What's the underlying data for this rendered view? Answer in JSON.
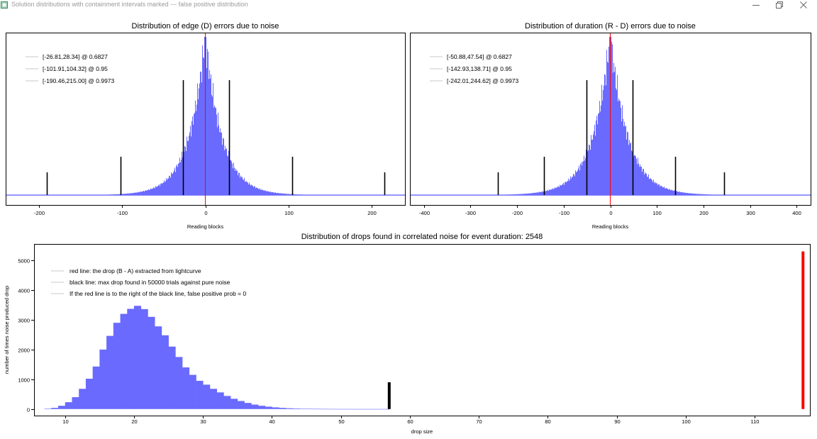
{
  "window": {
    "title": "Solution distributions with containment intervals marked --- false positive distribution",
    "icon": "app-icon",
    "controls": [
      "minimize-icon",
      "restore-icon",
      "close-icon"
    ]
  },
  "colors": {
    "histogram": "#6a6aff",
    "red_line": "#ff0000",
    "black_line": "#000000",
    "frame": "#000000",
    "background": "#ffffff"
  },
  "chart_data": [
    {
      "type": "bar",
      "title": "Distribution of edge (D) errors due to noise",
      "xlabel": "Reading blocks",
      "ylabel": "",
      "xlim": [
        -240,
        240
      ],
      "xticks": [
        -200,
        -100,
        0,
        100,
        200
      ],
      "grid": false,
      "legend_position": "top-left",
      "legend": [
        "[-26.81,28.34] @ 0.6827",
        "[-101.91,104.32] @ 0.95",
        "[-190.46,215.00] @ 0.9973"
      ],
      "histogram_center": 0,
      "histogram_shape": "laplace",
      "histogram_scale": 20,
      "red_line_x": 0,
      "intervals": [
        {
          "low": -26.81,
          "high": 28.34,
          "confidence": 0.6827
        },
        {
          "low": -101.91,
          "high": 104.32,
          "confidence": 0.95
        },
        {
          "low": -190.46,
          "high": 215.0,
          "confidence": 0.9973
        }
      ]
    },
    {
      "type": "bar",
      "title": "Distribution of duration (R - D) errors due to noise",
      "xlabel": "Reading blocks",
      "ylabel": "",
      "xlim": [
        -430,
        430
      ],
      "xticks": [
        -400,
        -300,
        -200,
        -100,
        0,
        100,
        200,
        300,
        400
      ],
      "grid": false,
      "legend_position": "top-left",
      "legend": [
        "[-50.88,47.54] @ 0.6827",
        "[-142.93,138.71] @ 0.95",
        "[-242.01,244.62] @ 0.9973"
      ],
      "histogram_center": 0,
      "histogram_shape": "laplace",
      "histogram_scale": 38,
      "red_line_x": 0,
      "intervals": [
        {
          "low": -50.88,
          "high": 47.54,
          "confidence": 0.6827
        },
        {
          "low": -142.93,
          "high": 138.71,
          "confidence": 0.95
        },
        {
          "low": -242.01,
          "high": 244.62,
          "confidence": 0.9973
        }
      ]
    },
    {
      "type": "bar",
      "title": "Distribution of drops found in correlated noise for event duration: 2548",
      "xlabel": "drop size",
      "ylabel": "number of times noise produced drop",
      "xlim": [
        5.5,
        118
      ],
      "ylim": [
        -220,
        5550
      ],
      "xticks": [
        10,
        20,
        30,
        40,
        50,
        60,
        70,
        80,
        90,
        100,
        110
      ],
      "yticks": [
        0,
        1000,
        2000,
        3000,
        4000,
        5000
      ],
      "grid": false,
      "legend_position": "top-left",
      "legend": [
        "red line: the drop (B - A) extracted from lightcurve",
        "black line: max drop found in 50000 trials against pure noise",
        "If the red line is to the right of the black line, false positive prob = 0"
      ],
      "bin_start": 7,
      "bin_width": 1,
      "values": [
        10,
        40,
        110,
        230,
        400,
        680,
        1020,
        1430,
        2000,
        2460,
        2900,
        3200,
        3370,
        3470,
        3360,
        3100,
        2780,
        2480,
        2100,
        1750,
        1400,
        1150,
        950,
        820,
        680,
        560,
        440,
        345,
        270,
        205,
        150,
        110,
        80,
        57,
        40,
        28,
        20,
        14,
        10,
        7,
        5,
        3,
        2,
        2,
        1,
        1,
        1,
        1,
        1,
        1
      ],
      "black_line": {
        "x": 57,
        "y_max": 900
      },
      "red_line": {
        "x": 117,
        "y_max": 5300
      }
    }
  ]
}
